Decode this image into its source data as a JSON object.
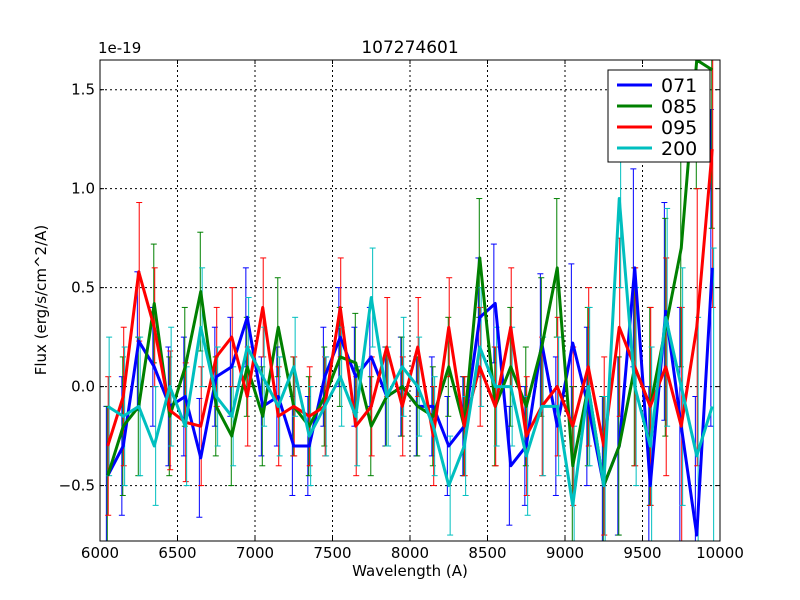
{
  "chart_data": {
    "type": "line",
    "title": "107274601",
    "xlabel": "Wavelength (A)",
    "ylabel": "Flux (erg/s/cm^2/A)",
    "y_offset_text": "1e-19",
    "xlim": [
      6000,
      10000
    ],
    "ylim": [
      -0.78,
      1.65
    ],
    "xticks": [
      6000,
      6500,
      7000,
      7500,
      8000,
      8500,
      9000,
      9500,
      10000
    ],
    "xtick_labels": [
      "6000",
      "6500",
      "7000",
      "7500",
      "8000",
      "8500",
      "9000",
      "9500",
      "10000"
    ],
    "yticks": [
      -0.5,
      0.0,
      0.5,
      1.0,
      1.5
    ],
    "ytick_labels": [
      "−0.5",
      "0.0",
      "0.5",
      "1.0",
      "1.5"
    ],
    "grid": true,
    "legend_position": "top-right",
    "x": [
      6050,
      6150,
      6250,
      6350,
      6450,
      6550,
      6650,
      6750,
      6850,
      6950,
      7050,
      7150,
      7250,
      7350,
      7450,
      7550,
      7650,
      7750,
      7850,
      7950,
      8050,
      8150,
      8250,
      8350,
      8450,
      8550,
      8650,
      8750,
      8850,
      8950,
      9050,
      9150,
      9250,
      9350,
      9450,
      9550,
      9650,
      9750,
      9850,
      9950
    ],
    "yerr": [
      0.35,
      0.35,
      0.35,
      0.3,
      0.3,
      0.3,
      0.3,
      0.25,
      0.25,
      0.25,
      0.25,
      0.25,
      0.25,
      0.25,
      0.25,
      0.25,
      0.25,
      0.25,
      0.25,
      0.25,
      0.25,
      0.25,
      0.25,
      0.25,
      0.3,
      0.3,
      0.3,
      0.3,
      0.35,
      0.35,
      0.4,
      0.4,
      0.45,
      0.45,
      0.5,
      0.5,
      0.55,
      0.6,
      0.7,
      0.8
    ],
    "series": [
      {
        "name": "071",
        "color": "#0000ff",
        "values": [
          -0.45,
          -0.3,
          0.23,
          0.1,
          -0.1,
          -0.05,
          -0.36,
          0.05,
          0.1,
          0.35,
          -0.1,
          -0.05,
          -0.3,
          -0.3,
          0.05,
          0.25,
          0.05,
          0.15,
          -0.05,
          0.0,
          -0.1,
          -0.1,
          -0.3,
          -0.2,
          0.35,
          0.42,
          -0.4,
          -0.3,
          0.22,
          -0.2,
          0.22,
          -0.1,
          -0.5,
          -0.3,
          0.6,
          -0.5,
          0.38,
          -0.2,
          -0.75,
          0.6
        ]
      },
      {
        "name": "085",
        "color": "#008000",
        "values": [
          -0.45,
          -0.2,
          -0.1,
          0.42,
          -0.15,
          0.1,
          0.48,
          -0.1,
          -0.25,
          0.1,
          -0.15,
          0.3,
          -0.1,
          -0.2,
          -0.05,
          0.15,
          0.12,
          -0.2,
          -0.05,
          0.0,
          -0.1,
          -0.15,
          0.1,
          -0.2,
          0.65,
          -0.1,
          0.1,
          -0.1,
          0.2,
          0.6,
          -0.4,
          0.0,
          -0.5,
          -0.3,
          0.1,
          -0.1,
          0.3,
          0.7,
          1.7,
          1.6
        ]
      },
      {
        "name": "095",
        "color": "#ff0000",
        "values": [
          -0.3,
          -0.05,
          0.58,
          0.3,
          -0.12,
          -0.18,
          -0.2,
          0.15,
          0.25,
          -0.05,
          0.4,
          -0.15,
          -0.1,
          -0.15,
          -0.1,
          0.4,
          -0.2,
          -0.1,
          0.2,
          -0.1,
          0.2,
          -0.25,
          0.3,
          -0.2,
          0.1,
          -0.1,
          0.3,
          -0.25,
          -0.1,
          0.0,
          -0.2,
          0.1,
          -0.3,
          0.3,
          0.1,
          -0.1,
          0.1,
          -0.2,
          0.3,
          1.2
        ]
      },
      {
        "name": "200",
        "color": "#00bfbf",
        "values": [
          -0.1,
          -0.15,
          -0.1,
          -0.3,
          0.0,
          -0.2,
          0.3,
          -0.05,
          -0.15,
          0.2,
          0.05,
          -0.1,
          0.1,
          -0.25,
          -0.1,
          0.05,
          -0.15,
          0.45,
          -0.05,
          0.1,
          0.0,
          -0.2,
          -0.5,
          -0.3,
          0.2,
          0.0,
          0.0,
          -0.35,
          -0.1,
          -0.1,
          -0.6,
          0.0,
          -0.5,
          0.95,
          0.0,
          -0.3,
          0.35,
          0.0,
          -0.35,
          -0.1
        ]
      }
    ]
  }
}
